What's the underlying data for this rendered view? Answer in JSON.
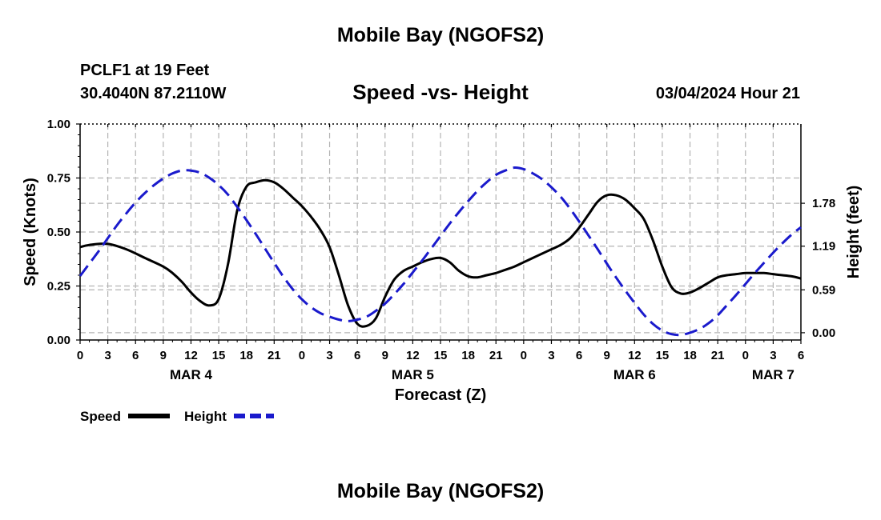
{
  "header": {
    "title": "Mobile Bay (NGOFS2)",
    "station": "PCLF1 at 19 Feet",
    "coords": "30.4040N  87.2110W",
    "subtitle": "Speed -vs- Height",
    "timestamp": "03/04/2024 Hour 21"
  },
  "footer": {
    "title": "Mobile Bay (NGOFS2)"
  },
  "colors": {
    "speed": "#000000",
    "height": "#1a1acc",
    "grid": "#b4b4b4"
  },
  "chart_data": {
    "type": "line",
    "xlabel": "Forecast (Z)",
    "ylabel_left": "Speed (Knots)",
    "ylabel_right": "Height (feet)",
    "x_range_hours": [
      0,
      78
    ],
    "x_tick_labels": [
      "0",
      "3",
      "6",
      "9",
      "12",
      "15",
      "18",
      "21",
      "0",
      "3",
      "6",
      "9",
      "12",
      "15",
      "18",
      "21",
      "0",
      "3",
      "6",
      "9",
      "12",
      "15",
      "18",
      "21",
      "0",
      "3",
      "6"
    ],
    "day_labels": [
      {
        "hour": 12,
        "label": "MAR 4"
      },
      {
        "hour": 36,
        "label": "MAR 5"
      },
      {
        "hour": 60,
        "label": "MAR 6"
      },
      {
        "hour": 75,
        "label": "MAR 7"
      }
    ],
    "left_axis": {
      "ylim": [
        0,
        1.0
      ],
      "ticks": [
        0.0,
        0.25,
        0.5,
        0.75,
        1.0
      ],
      "tick_labels": [
        "0.00",
        "0.25",
        "0.50",
        "0.75",
        "1.00"
      ]
    },
    "right_axis": {
      "ylim": [
        -0.1,
        2.87
      ],
      "ticks": [
        0.0,
        0.59,
        1.19,
        1.78
      ],
      "tick_labels": [
        "0.00",
        "0.59",
        "1.19",
        "1.78"
      ]
    },
    "legend": [
      {
        "name": "Speed",
        "style": "solid"
      },
      {
        "name": "Height",
        "style": "dashed"
      }
    ],
    "series": [
      {
        "name": "Speed",
        "axis": "left",
        "x": [
          0,
          1,
          3,
          5,
          7,
          9,
          10,
          11,
          12,
          13,
          14,
          15,
          16,
          17,
          18,
          19,
          20,
          21,
          22,
          23,
          24,
          25,
          26,
          27,
          28,
          29,
          30,
          31,
          32,
          33,
          34,
          35,
          36,
          37,
          38,
          39,
          40,
          41,
          42,
          43,
          44,
          45,
          46,
          47,
          48,
          49,
          50,
          51,
          52,
          53,
          54,
          55,
          56,
          57,
          58,
          59,
          60,
          61,
          62,
          63,
          64,
          65,
          66,
          67,
          68,
          69,
          70,
          71,
          72,
          73,
          74,
          75,
          76,
          77,
          78
        ],
        "y": [
          0.43,
          0.44,
          0.445,
          0.42,
          0.38,
          0.34,
          0.31,
          0.27,
          0.22,
          0.18,
          0.16,
          0.19,
          0.35,
          0.6,
          0.71,
          0.73,
          0.74,
          0.73,
          0.7,
          0.66,
          0.62,
          0.57,
          0.51,
          0.43,
          0.3,
          0.16,
          0.075,
          0.065,
          0.1,
          0.2,
          0.28,
          0.32,
          0.34,
          0.36,
          0.375,
          0.38,
          0.36,
          0.32,
          0.295,
          0.29,
          0.3,
          0.31,
          0.325,
          0.34,
          0.36,
          0.38,
          0.4,
          0.42,
          0.44,
          0.47,
          0.52,
          0.58,
          0.64,
          0.67,
          0.67,
          0.65,
          0.61,
          0.56,
          0.46,
          0.34,
          0.245,
          0.215,
          0.22,
          0.24,
          0.265,
          0.29,
          0.3,
          0.305,
          0.31,
          0.31,
          0.31,
          0.305,
          0.3,
          0.295,
          0.285
        ]
      },
      {
        "name": "Height",
        "axis": "right",
        "x": [
          0,
          1,
          2,
          3,
          4,
          5,
          6,
          7,
          8,
          9,
          10,
          11,
          12,
          13,
          14,
          15,
          16,
          17,
          18,
          19,
          20,
          21,
          22,
          23,
          24,
          25,
          26,
          27,
          28,
          29,
          30,
          31,
          32,
          33,
          34,
          35,
          36,
          37,
          38,
          39,
          40,
          41,
          42,
          43,
          44,
          45,
          46,
          47,
          48,
          49,
          50,
          51,
          52,
          53,
          54,
          55,
          56,
          57,
          58,
          59,
          60,
          61,
          62,
          63,
          64,
          65,
          66,
          67,
          68,
          69,
          70,
          71,
          72,
          73,
          74,
          75,
          76,
          77,
          78
        ],
        "y": [
          0.78,
          0.95,
          1.12,
          1.3,
          1.48,
          1.64,
          1.79,
          1.92,
          2.03,
          2.12,
          2.19,
          2.23,
          2.23,
          2.2,
          2.13,
          2.03,
          1.9,
          1.73,
          1.55,
          1.36,
          1.16,
          0.96,
          0.77,
          0.6,
          0.46,
          0.35,
          0.27,
          0.22,
          0.18,
          0.16,
          0.18,
          0.22,
          0.3,
          0.4,
          0.53,
          0.67,
          0.83,
          0.99,
          1.16,
          1.33,
          1.5,
          1.66,
          1.81,
          1.95,
          2.07,
          2.17,
          2.23,
          2.27,
          2.25,
          2.19,
          2.11,
          2.0,
          1.87,
          1.71,
          1.53,
          1.34,
          1.15,
          0.95,
          0.76,
          0.58,
          0.41,
          0.25,
          0.12,
          0.03,
          -0.02,
          -0.03,
          0.0,
          0.05,
          0.13,
          0.24,
          0.38,
          0.52,
          0.67,
          0.82,
          0.96,
          1.1,
          1.23,
          1.35,
          1.45
        ]
      }
    ]
  }
}
